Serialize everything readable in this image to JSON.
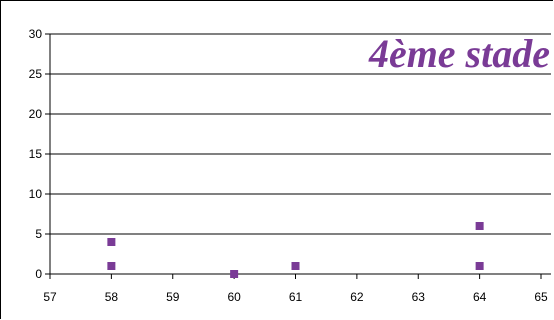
{
  "chart_data": {
    "type": "scatter",
    "title": "4ème stade",
    "xlabel": "",
    "ylabel": "",
    "xlim": [
      57,
      65
    ],
    "ylim": [
      0,
      30
    ],
    "x_ticks": [
      57,
      58,
      59,
      60,
      61,
      62,
      63,
      64,
      65
    ],
    "y_ticks": [
      0,
      5,
      10,
      15,
      20,
      25,
      30
    ],
    "grid": "horizontal",
    "legend": "none",
    "marker": "square",
    "colors": {
      "points": "#7a3b96",
      "title": "#7a3b96",
      "grid": "#000000"
    },
    "series": [
      {
        "x": [
          58,
          58,
          60,
          61,
          64,
          64
        ],
        "y": [
          4,
          1,
          0,
          1,
          6,
          1
        ]
      }
    ]
  }
}
